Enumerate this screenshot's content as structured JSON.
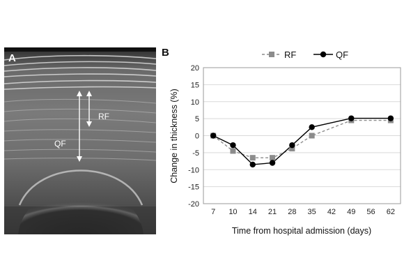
{
  "panel_a": {
    "letter": "A",
    "labels": {
      "rf": "RF",
      "qf": "QF"
    }
  },
  "panel_b": {
    "letter": "B"
  },
  "chart_data": {
    "type": "line",
    "x": [
      "7",
      "10",
      "14",
      "21",
      "28",
      "35",
      "42",
      "49",
      "56",
      "62"
    ],
    "series": [
      {
        "name": "RF",
        "marker": "square",
        "line": "dashed",
        "color": "#8c8c8c",
        "values": [
          0,
          -4.5,
          -6.5,
          -6.5,
          -3.8,
          0,
          null,
          4.5,
          null,
          4.5
        ]
      },
      {
        "name": "QF",
        "marker": "circle",
        "line": "solid",
        "color": "#000000",
        "values": [
          0,
          -2.8,
          -8.5,
          -8,
          -2.8,
          2.5,
          null,
          5.1,
          null,
          5.1
        ]
      }
    ],
    "title": "",
    "xlabel": "Time from hospital admission (days)",
    "ylabel": "Change in thickness (%)",
    "ylim": [
      -20,
      20
    ],
    "yticks": [
      "20",
      "15",
      "10",
      "5",
      "0",
      "-5",
      "-10",
      "-15",
      "-20"
    ],
    "grid": true,
    "legend": "top"
  }
}
